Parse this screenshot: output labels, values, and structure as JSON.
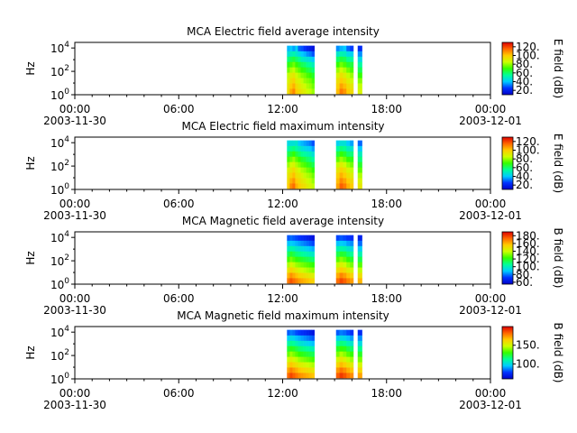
{
  "figure": {
    "x_ticks": [
      "00:00",
      "06:00",
      "12:00",
      "18:00",
      "00:00"
    ],
    "x_sublabels": [
      "2003-11-30",
      "2003-12-01"
    ],
    "y_label": "Hz",
    "y_ticks": [
      {
        "base": "10",
        "exp": "0",
        "value": 1
      },
      {
        "base": "10",
        "exp": "2",
        "value": 100
      },
      {
        "base": "10",
        "exp": "4",
        "value": 10000
      }
    ]
  },
  "colormap": [
    "#0000c8",
    "#0033ff",
    "#00ccff",
    "#00ff99",
    "#33ff00",
    "#ccff00",
    "#ffcc00",
    "#ff6600",
    "#dd0000"
  ],
  "chart_data": [
    {
      "type": "heatmap",
      "title": "MCA  Electric field average intensity",
      "xlabel": "",
      "ylabel": "Hz",
      "x_range": [
        "2003-11-30 00:00",
        "2003-12-01 00:00"
      ],
      "y_scale": "log",
      "ylim": [
        1,
        30000
      ],
      "colorbar": {
        "label": "E field (dB)",
        "range": [
          10,
          130
        ],
        "ticks": [
          "120.",
          "100.",
          "80.",
          "60.",
          "40.",
          "20."
        ],
        "tick_values": [
          120,
          100,
          80,
          60,
          40,
          20
        ]
      },
      "data_blocks": [
        {
          "start": "12:15",
          "end": "13:50",
          "columns": [
            [
              95,
              92,
              88,
              84,
              76,
              68,
              58,
              46,
              38
            ],
            [
              105,
              100,
              95,
              90,
              82,
              72,
              62,
              50,
              40
            ],
            [
              110,
              104,
              98,
              92,
              84,
              76,
              64,
              52,
              36
            ],
            [
              100,
              96,
              90,
              86,
              78,
              70,
              60,
              48,
              42
            ],
            [
              96,
              92,
              88,
              82,
              74,
              66,
              56,
              44,
              30
            ],
            [
              92,
              88,
              84,
              78,
              70,
              62,
              50,
              40,
              28
            ],
            [
              90,
              86,
              80,
              76,
              68,
              60,
              48,
              38,
              24
            ],
            [
              86,
              82,
              78,
              72,
              64,
              56,
              46,
              34,
              20
            ],
            [
              84,
              80,
              76,
              70,
              62,
              54,
              44,
              32,
              18
            ],
            [
              80,
              76,
              72,
              66,
              58,
              50,
              40,
              28,
              16
            ]
          ]
        },
        {
          "start": "15:05",
          "end": "16:05",
          "columns": [
            [
              102,
              98,
              94,
              88,
              80,
              70,
              60,
              48,
              34
            ],
            [
              112,
              106,
              100,
              94,
              86,
              76,
              64,
              52,
              38
            ],
            [
              108,
              102,
              96,
              90,
              82,
              72,
              62,
              50,
              40
            ],
            [
              100,
              96,
              90,
              84,
              76,
              66,
              56,
              44,
              30
            ],
            [
              96,
              92,
              86,
              80,
              72,
              64,
              54,
              42,
              26
            ]
          ]
        },
        {
          "start": "16:20",
          "end": "16:35",
          "columns": [
            [
              88,
              84,
              78,
              70,
              62,
              54,
              44,
              34,
              22
            ]
          ]
        }
      ]
    },
    {
      "type": "heatmap",
      "title": "MCA  Electric field maximum intensity",
      "xlabel": "",
      "ylabel": "Hz",
      "x_range": [
        "2003-11-30 00:00",
        "2003-12-01 00:00"
      ],
      "y_scale": "log",
      "ylim": [
        1,
        30000
      ],
      "colorbar": {
        "label": "E field (dB)",
        "range": [
          10,
          130
        ],
        "ticks": [
          "120.",
          "100.",
          "80.",
          "60.",
          "40.",
          "20."
        ],
        "tick_values": [
          120,
          100,
          80,
          60,
          40,
          20
        ]
      },
      "data_blocks": [
        {
          "start": "12:15",
          "end": "13:50",
          "columns": [
            [
              100,
              96,
              92,
              88,
              80,
              72,
              62,
              52,
              44
            ],
            [
              110,
              104,
              98,
              92,
              86,
              76,
              66,
              56,
              46
            ],
            [
              114,
              108,
              102,
              96,
              88,
              80,
              70,
              58,
              46
            ],
            [
              104,
              100,
              94,
              90,
              82,
              74,
              64,
              54,
              48
            ],
            [
              100,
              96,
              92,
              86,
              78,
              70,
              60,
              50,
              40
            ],
            [
              96,
              92,
              88,
              82,
              74,
              66,
              56,
              46,
              38
            ],
            [
              94,
              90,
              84,
              80,
              72,
              64,
              54,
              44,
              36
            ],
            [
              90,
              86,
              82,
              76,
              68,
              60,
              52,
              42,
              34
            ],
            [
              88,
              84,
              80,
              74,
              66,
              58,
              50,
              40,
              32
            ],
            [
              84,
              80,
              76,
              70,
              62,
              54,
              46,
              36,
              28
            ]
          ]
        },
        {
          "start": "15:05",
          "end": "16:05",
          "columns": [
            [
              106,
              102,
              98,
              92,
              84,
              74,
              64,
              54,
              42
            ],
            [
              116,
              110,
              104,
              98,
              90,
              80,
              70,
              58,
              46
            ],
            [
              112,
              106,
              100,
              94,
              86,
              76,
              66,
              56,
              46
            ],
            [
              104,
              100,
              94,
              88,
              80,
              70,
              60,
              50,
              40
            ],
            [
              100,
              96,
              90,
              84,
              76,
              68,
              58,
              48,
              36
            ]
          ]
        },
        {
          "start": "16:20",
          "end": "16:35",
          "columns": [
            [
              92,
              88,
              82,
              74,
              66,
              58,
              50,
              40,
              30
            ]
          ]
        }
      ]
    },
    {
      "type": "heatmap",
      "title": "MCA  Magnetic field average intensity",
      "xlabel": "",
      "ylabel": "Hz",
      "x_range": [
        "2003-11-30 00:00",
        "2003-12-01 00:00"
      ],
      "y_scale": "log",
      "ylim": [
        1,
        30000
      ],
      "colorbar": {
        "label": "B field (dB)",
        "range": [
          55,
          190
        ],
        "ticks": [
          "180.",
          "160.",
          "140.",
          "120.",
          "100.",
          "80.",
          "60."
        ],
        "tick_values": [
          180,
          160,
          140,
          120,
          100,
          80,
          60
        ]
      },
      "data_blocks": [
        {
          "start": "12:15",
          "end": "13:50",
          "columns": [
            [
              170,
              160,
              148,
              136,
              124,
              112,
              100,
              88,
              76
            ],
            [
              176,
              166,
              154,
              142,
              130,
              118,
              104,
              90,
              78
            ],
            [
              172,
              162,
              150,
              138,
              126,
              114,
              102,
              88,
              76
            ],
            [
              168,
              158,
              146,
              134,
              122,
              110,
              98,
              86,
              74
            ],
            [
              164,
              154,
              142,
              132,
              120,
              108,
              96,
              84,
              72
            ],
            [
              162,
              152,
              140,
              130,
              118,
              106,
              94,
              82,
              70
            ],
            [
              160,
              150,
              138,
              128,
              116,
              104,
              92,
              80,
              68
            ],
            [
              158,
              148,
              136,
              126,
              114,
              102,
              90,
              78,
              66
            ],
            [
              156,
              146,
              134,
              124,
              112,
              100,
              88,
              76,
              64
            ],
            [
              154,
              144,
              132,
              122,
              110,
              98,
              86,
              74,
              62
            ]
          ]
        },
        {
          "start": "15:05",
          "end": "16:05",
          "columns": [
            [
              172,
              162,
              150,
              138,
              126,
              114,
              102,
              88,
              74
            ],
            [
              178,
              168,
              156,
              144,
              132,
              118,
              104,
              90,
              76
            ],
            [
              174,
              164,
              152,
              140,
              128,
              116,
              102,
              88,
              74
            ],
            [
              168,
              158,
              146,
              134,
              122,
              110,
              98,
              84,
              72
            ],
            [
              164,
              154,
              142,
              130,
              118,
              106,
              94,
              82,
              70
            ]
          ]
        },
        {
          "start": "16:20",
          "end": "16:35",
          "columns": [
            [
              160,
              150,
              138,
              126,
              114,
              102,
              90,
              78,
              66
            ]
          ]
        }
      ]
    },
    {
      "type": "heatmap",
      "title": "MCA  Magnetic field maximum intensity",
      "xlabel": "",
      "ylabel": "Hz",
      "x_range": [
        "2003-11-30 00:00",
        "2003-12-01 00:00"
      ],
      "y_scale": "log",
      "ylim": [
        1,
        30000
      ],
      "colorbar": {
        "label": "B field (dB)",
        "range": [
          60,
          200
        ],
        "ticks": [
          "150.",
          "100."
        ],
        "tick_values": [
          150,
          100
        ]
      },
      "data_blocks": [
        {
          "start": "12:15",
          "end": "13:50",
          "columns": [
            [
              182,
              172,
              160,
              148,
              136,
              124,
              110,
              96,
              82
            ],
            [
              188,
              178,
              166,
              154,
              142,
              128,
              114,
              100,
              86
            ],
            [
              184,
              174,
              162,
              150,
              138,
              126,
              112,
              98,
              84
            ],
            [
              180,
              170,
              158,
              146,
              134,
              122,
              108,
              94,
              80
            ],
            [
              176,
              166,
              154,
              142,
              130,
              118,
              104,
              92,
              78
            ],
            [
              174,
              164,
              152,
              140,
              128,
              116,
              102,
              90,
              76
            ],
            [
              172,
              162,
              150,
              138,
              126,
              114,
              100,
              88,
              74
            ],
            [
              170,
              160,
              148,
              136,
              124,
              112,
              98,
              86,
              72
            ],
            [
              168,
              158,
              146,
              134,
              122,
              110,
              96,
              84,
              70
            ],
            [
              166,
              156,
              144,
              132,
              120,
              108,
              94,
              82,
              68
            ]
          ]
        },
        {
          "start": "15:05",
          "end": "16:05",
          "columns": [
            [
              184,
              174,
              162,
              150,
              138,
              126,
              112,
              98,
              82
            ],
            [
              190,
              180,
              168,
              156,
              144,
              130,
              116,
              100,
              86
            ],
            [
              186,
              176,
              164,
              152,
              140,
              128,
              114,
              98,
              84
            ],
            [
              180,
              170,
              158,
              146,
              134,
              122,
              108,
              94,
              80
            ],
            [
              176,
              166,
              154,
              142,
              130,
              118,
              104,
              90,
              76
            ]
          ]
        },
        {
          "start": "16:20",
          "end": "16:35",
          "columns": [
            [
              172,
              162,
              150,
              138,
              126,
              114,
              100,
              88,
              74
            ]
          ]
        }
      ]
    }
  ]
}
